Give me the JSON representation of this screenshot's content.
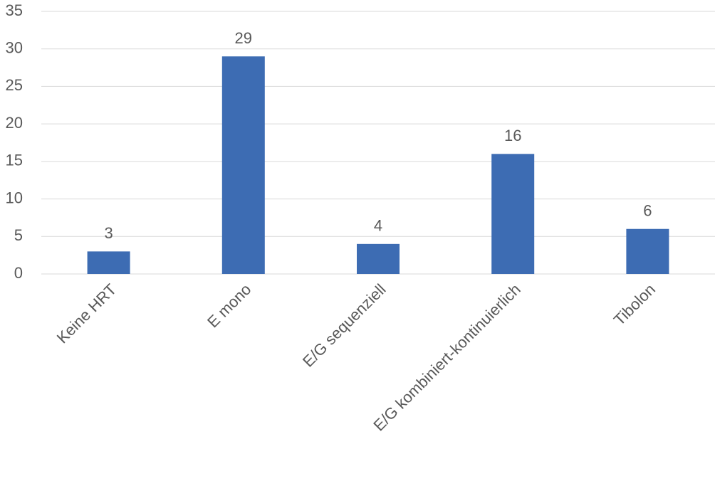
{
  "chart_data": {
    "type": "bar",
    "categories": [
      "Keine HRT",
      "E mono",
      "E/G sequenziell",
      "E/G kombiniert-kontinuierlich",
      "Tibolon"
    ],
    "values": [
      3,
      29,
      4,
      16,
      6
    ],
    "color": "#3d6cb3",
    "ylim": [
      0,
      35
    ],
    "yticks": [
      0,
      5,
      10,
      15,
      20,
      25,
      30,
      35
    ],
    "grid": true
  }
}
